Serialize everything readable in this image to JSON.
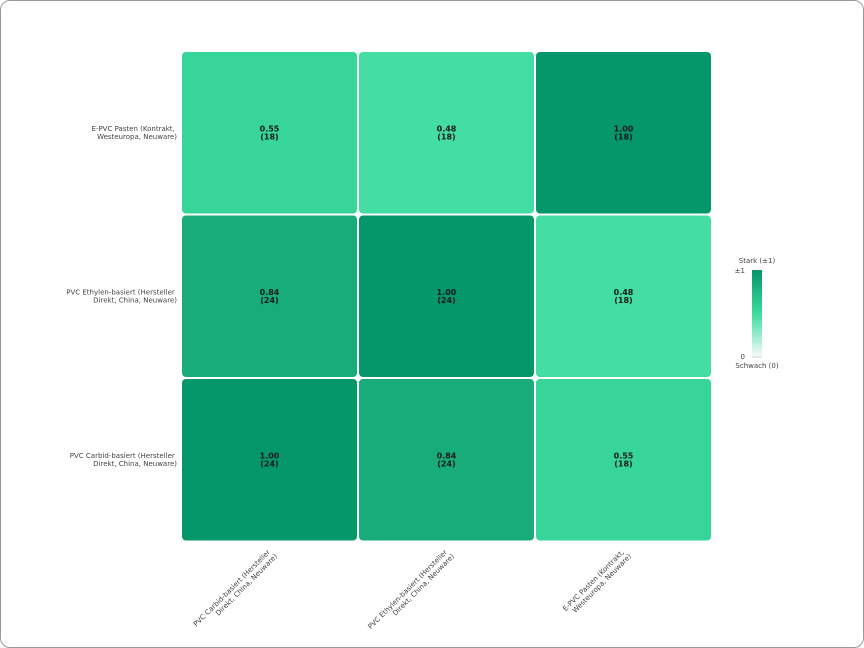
{
  "chart_data": {
    "type": "heatmap",
    "rows": [
      "E-PVC Pasten (Kontrakt, Westeuropa, Neuware)",
      "PVC Ethylen-basiert (Hersteller Direkt, China, Neuware)",
      "PVC Carbid-basiert (Hersteller Direkt, China, Neuware)"
    ],
    "columns": [
      "PVC Carbid-basiert (Hersteller Direkt, China, Neuware)",
      "PVC Ethylen-basiert (Hersteller Direkt, China, Neuware)",
      "E-PVC Pasten (Kontrakt, Westeuropa, Neuware)"
    ],
    "values": [
      [
        0.55,
        0.48,
        1
      ],
      [
        0.84,
        1,
        0.48
      ],
      [
        1,
        0.84,
        0.55
      ]
    ],
    "value_labels": [
      [
        "0.55",
        "0.48",
        "1.00"
      ],
      [
        "0.84",
        "1.00",
        "0.48"
      ],
      [
        "1.00",
        "0.84",
        "0.55"
      ]
    ],
    "counts": [
      [
        18,
        18,
        18
      ],
      [
        24,
        24,
        18
      ],
      [
        24,
        24,
        18
      ]
    ],
    "count_labels": [
      [
        "(18)",
        "(18)",
        "(18)"
      ],
      [
        "(24)",
        "(24)",
        "(18)"
      ],
      [
        "(24)",
        "(24)",
        "(18)"
      ]
    ],
    "colormap": [
      "#f8fafc",
      "#3ddc9f",
      "#059669"
    ],
    "zlim": [
      0,
      1
    ],
    "colorbar_ticks": [
      {
        "value": 1,
        "label": "±1"
      },
      0
    ],
    "colorbar_top_label": "Stark (±1)",
    "colorbar_bottom_label": "Schwach (0)"
  }
}
